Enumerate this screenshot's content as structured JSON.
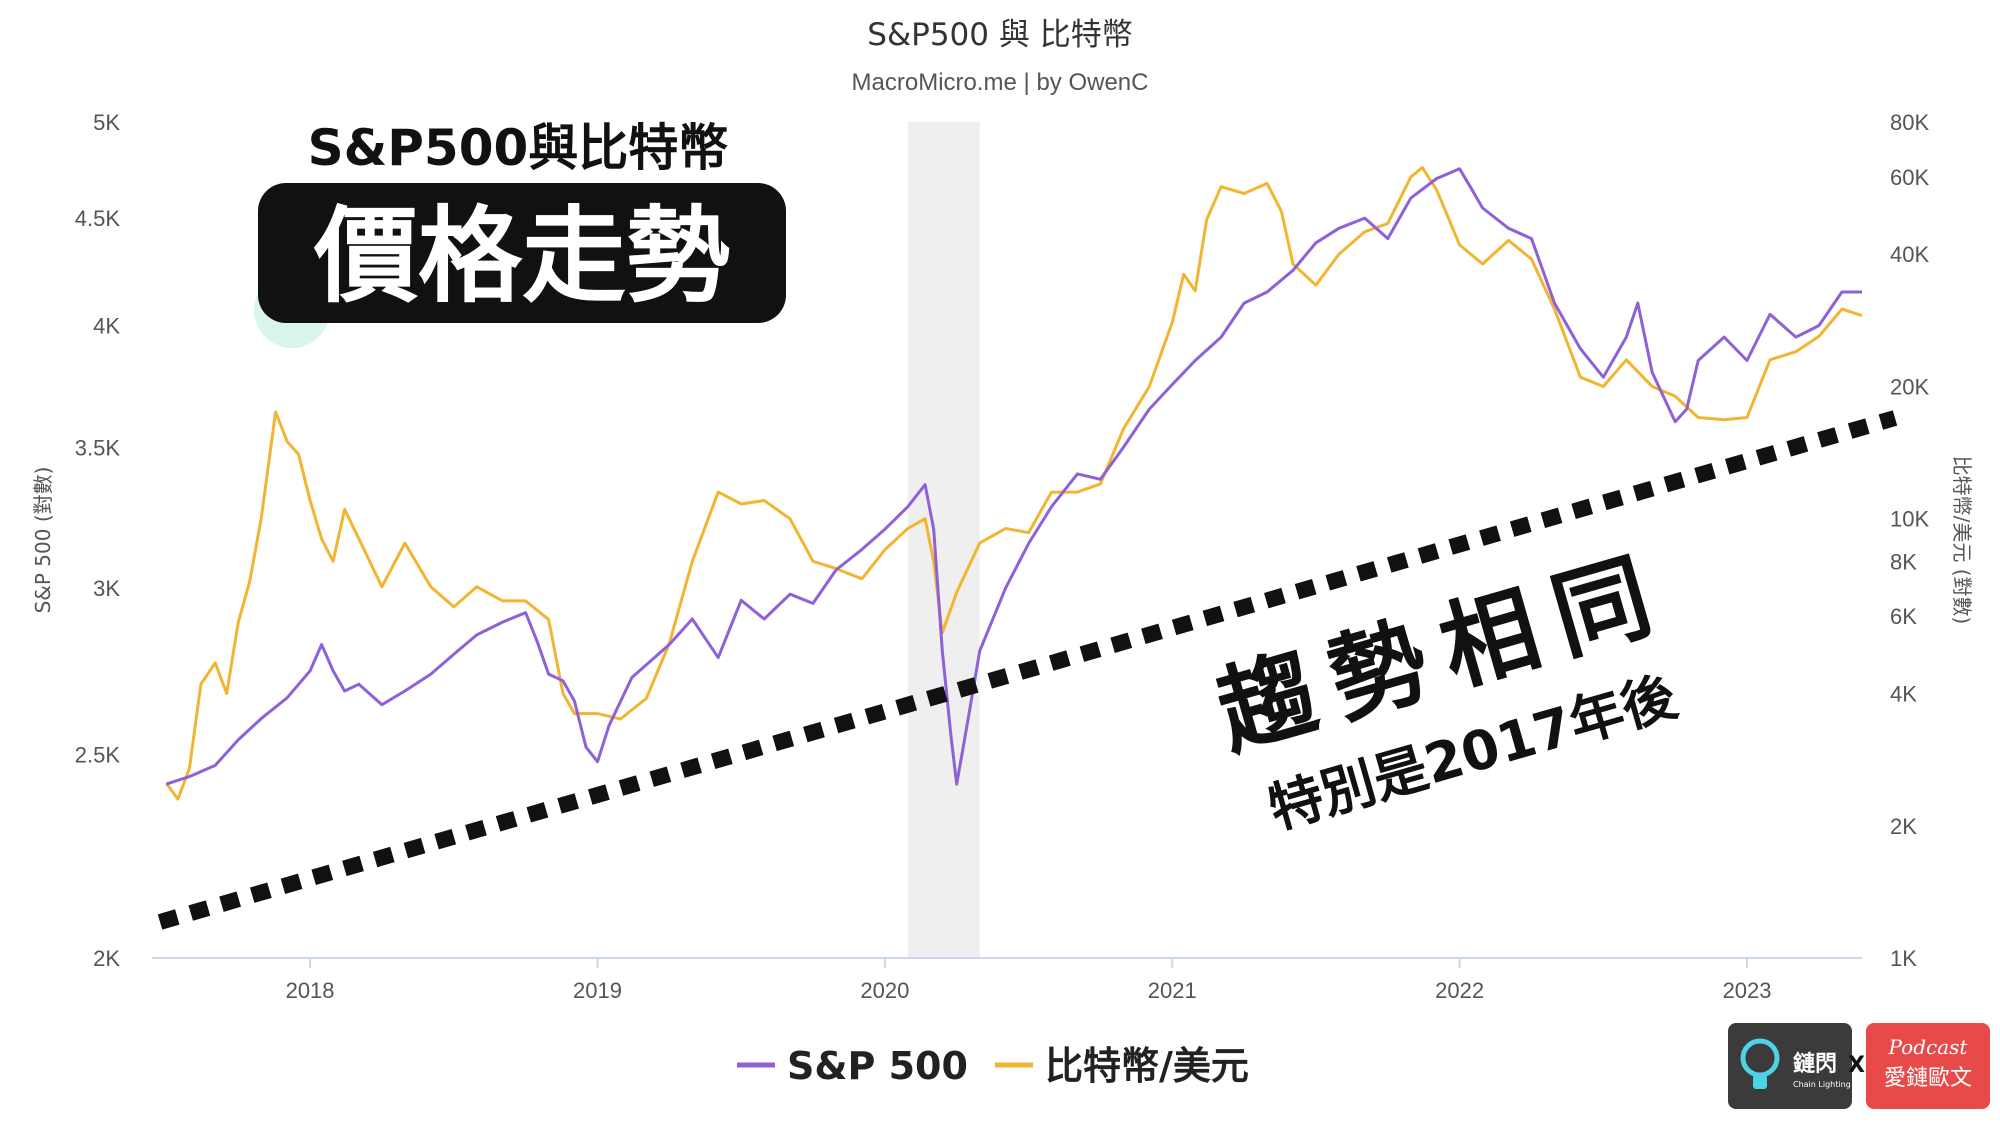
{
  "header": {
    "title": "S&P500 與 比特幣",
    "subtitle": "MacroMicro.me | by OwenC"
  },
  "overlay": {
    "top_text": "S&P500與比特幣",
    "big_text": "價格走勢",
    "trend_text": "趨勢相同",
    "note_text": "特別是2017年後"
  },
  "logos": {
    "left_text": "鏈閃",
    "left_sub": "Chain Lighting",
    "x": "X",
    "right_top": "Podcast",
    "right_main": "愛鏈歐文"
  },
  "chart_data": {
    "type": "line",
    "title": "S&P500 與 比特幣",
    "subtitle": "MacroMicro.me | by OwenC",
    "xlim": [
      2017.45,
      2023.4
    ],
    "x_ticks": [
      2018,
      2019,
      2020,
      2021,
      2022,
      2023
    ],
    "x_tick_labels": [
      "2018",
      "2019",
      "2020",
      "2021",
      "2022",
      "2023"
    ],
    "left_axis": {
      "label": "S&P 500 (對數)",
      "scale": "log",
      "range": [
        2000,
        5000
      ],
      "ticks": [
        2000,
        2500,
        3000,
        3500,
        4000,
        4500,
        5000
      ],
      "tick_labels": [
        "2K",
        "2.5K",
        "3K",
        "3.5K",
        "4K",
        "4.5K",
        "5K"
      ]
    },
    "right_axis": {
      "label": "比特幣/美元 (對數)",
      "scale": "log",
      "range": [
        1000,
        80000
      ],
      "ticks": [
        1000,
        2000,
        4000,
        6000,
        8000,
        10000,
        20000,
        40000,
        60000,
        80000
      ],
      "tick_labels": [
        "1K",
        "2K",
        "4K",
        "6K",
        "8K",
        "10K",
        "20K",
        "40K",
        "60K",
        "80K"
      ]
    },
    "shaded_region": [
      2020.08,
      2020.33
    ],
    "legend_position": "bottom-center",
    "grid": false,
    "series": [
      {
        "name": "S&P 500",
        "axis": "left",
        "color": "#8e61d8",
        "x": [
          2017.5,
          2017.58,
          2017.67,
          2017.75,
          2017.83,
          2017.92,
          2018.0,
          2018.04,
          2018.08,
          2018.12,
          2018.17,
          2018.25,
          2018.33,
          2018.42,
          2018.5,
          2018.58,
          2018.67,
          2018.75,
          2018.79,
          2018.83,
          2018.88,
          2018.92,
          2018.96,
          2019.0,
          2019.04,
          2019.12,
          2019.25,
          2019.33,
          2019.42,
          2019.5,
          2019.58,
          2019.67,
          2019.75,
          2019.83,
          2019.92,
          2020.0,
          2020.08,
          2020.14,
          2020.17,
          2020.2,
          2020.23,
          2020.25,
          2020.29,
          2020.33,
          2020.42,
          2020.5,
          2020.58,
          2020.67,
          2020.75,
          2020.83,
          2020.92,
          2021.0,
          2021.08,
          2021.17,
          2021.25,
          2021.33,
          2021.42,
          2021.5,
          2021.58,
          2021.67,
          2021.75,
          2021.83,
          2021.92,
          2022.0,
          2022.04,
          2022.08,
          2022.17,
          2022.25,
          2022.33,
          2022.42,
          2022.5,
          2022.58,
          2022.62,
          2022.67,
          2022.75,
          2022.79,
          2022.83,
          2022.92,
          2023.0,
          2023.08,
          2023.17,
          2023.25,
          2023.33,
          2023.4
        ],
        "values": [
          2420,
          2440,
          2470,
          2540,
          2600,
          2660,
          2740,
          2820,
          2740,
          2680,
          2700,
          2640,
          2680,
          2730,
          2790,
          2850,
          2890,
          2920,
          2830,
          2730,
          2710,
          2650,
          2520,
          2480,
          2580,
          2720,
          2820,
          2900,
          2780,
          2960,
          2900,
          2980,
          2950,
          3060,
          3130,
          3200,
          3280,
          3360,
          3200,
          2800,
          2550,
          2420,
          2600,
          2800,
          3000,
          3150,
          3280,
          3400,
          3380,
          3500,
          3650,
          3750,
          3850,
          3950,
          4100,
          4150,
          4250,
          4380,
          4450,
          4500,
          4400,
          4600,
          4700,
          4750,
          4650,
          4550,
          4450,
          4400,
          4100,
          3900,
          3780,
          3950,
          4100,
          3800,
          3600,
          3650,
          3850,
          3950,
          3850,
          4050,
          3950,
          4000,
          4150,
          4150
        ]
      },
      {
        "name": "比特幣/美元",
        "axis": "right",
        "color": "#f2b531",
        "x": [
          2017.5,
          2017.54,
          2017.58,
          2017.62,
          2017.67,
          2017.71,
          2017.75,
          2017.79,
          2017.83,
          2017.88,
          2017.92,
          2017.96,
          2018.0,
          2018.04,
          2018.08,
          2018.12,
          2018.17,
          2018.25,
          2018.33,
          2018.42,
          2018.5,
          2018.58,
          2018.67,
          2018.75,
          2018.83,
          2018.88,
          2018.92,
          2019.0,
          2019.08,
          2019.17,
          2019.25,
          2019.33,
          2019.42,
          2019.5,
          2019.58,
          2019.67,
          2019.75,
          2019.83,
          2019.92,
          2020.0,
          2020.08,
          2020.14,
          2020.17,
          2020.2,
          2020.25,
          2020.33,
          2020.42,
          2020.5,
          2020.58,
          2020.67,
          2020.75,
          2020.83,
          2020.92,
          2021.0,
          2021.04,
          2021.08,
          2021.12,
          2021.17,
          2021.25,
          2021.33,
          2021.38,
          2021.42,
          2021.5,
          2021.58,
          2021.67,
          2021.75,
          2021.83,
          2021.87,
          2021.92,
          2022.0,
          2022.08,
          2022.17,
          2022.25,
          2022.33,
          2022.42,
          2022.5,
          2022.58,
          2022.67,
          2022.75,
          2022.83,
          2022.92,
          2023.0,
          2023.08,
          2023.17,
          2023.25,
          2023.33,
          2023.4
        ],
        "values": [
          2500,
          2300,
          2700,
          4200,
          4700,
          4000,
          5800,
          7200,
          10000,
          17500,
          15000,
          14000,
          11000,
          9000,
          8000,
          10500,
          9000,
          7000,
          8800,
          7000,
          6300,
          7000,
          6500,
          6500,
          5900,
          4000,
          3600,
          3600,
          3500,
          3900,
          5200,
          8000,
          11500,
          10800,
          11000,
          10000,
          8000,
          7700,
          7300,
          8500,
          9500,
          10000,
          8000,
          5500,
          6800,
          8800,
          9500,
          9300,
          11500,
          11500,
          12000,
          16000,
          20000,
          28000,
          36000,
          33000,
          48000,
          57000,
          55000,
          58000,
          50000,
          38000,
          34000,
          40000,
          45000,
          47000,
          60000,
          63000,
          56000,
          42000,
          38000,
          43000,
          39000,
          30000,
          21000,
          20000,
          23000,
          20000,
          19000,
          17000,
          16800,
          17000,
          23000,
          24000,
          26000,
          30000,
          29000
        ]
      }
    ]
  }
}
